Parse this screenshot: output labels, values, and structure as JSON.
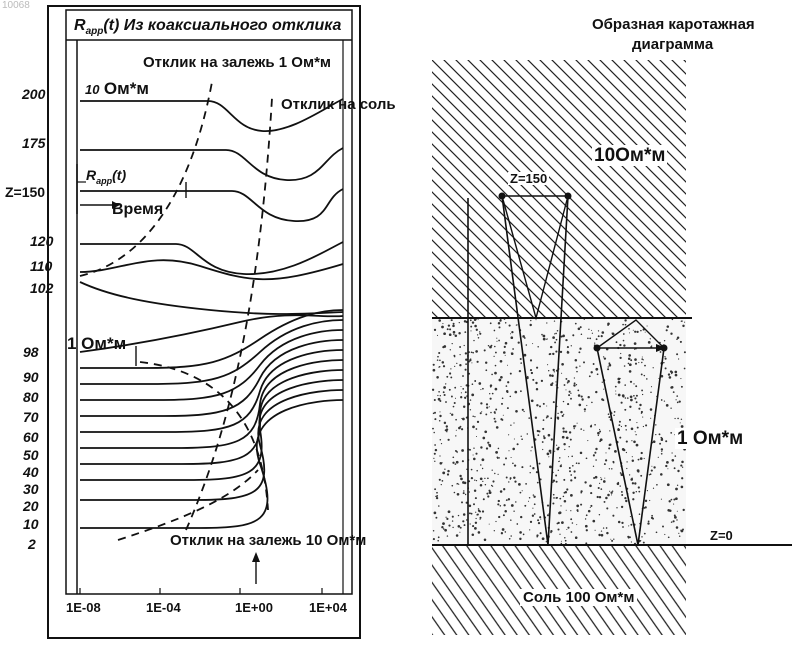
{
  "corner_label": "10068",
  "left_panel": {
    "title_prefix": "R",
    "title_sub": "app",
    "title_suffix": "(t) Из коаксиального отклика",
    "label_reservoir_1": "Отклик на залежь 1 Ом*м",
    "label_salt": "Отклик на соль",
    "label_reservoir_10": "Отклик на залежь 10 Ом*м",
    "label_10ohm_num": "10",
    "label_10ohm_unit": "Ом*м",
    "label_1ohm": "1 Ом*м",
    "label_rapp_prefix": "R",
    "label_rapp_sub": "app",
    "label_rapp_suffix": "(t)",
    "label_time": "Время"
  },
  "chart_data": {
    "type": "line",
    "title": "Rapp(t) Из коаксиального отклика",
    "xscale": "log",
    "x_ticks": [
      "1E-08",
      "1E-04",
      "1E+00",
      "1E+04"
    ],
    "y_ticks": [
      "200",
      "175",
      "Z=150",
      "120",
      "110",
      "102",
      "98",
      "90",
      "80",
      "70",
      "60",
      "50",
      "40",
      "30",
      "20",
      "10",
      "2"
    ],
    "series_count": 17,
    "annotations": [
      "Отклик на залежь 1 Ом*м",
      "Отклик на соль",
      "Отклик на залежь 10 Ом*м"
    ]
  },
  "right_panel": {
    "title_line1": "Образная каротажная",
    "title_line2": "диаграмма",
    "label_upper": "10Ом*м",
    "label_z150": "Z=150",
    "label_middle": "1 Ом*м",
    "label_z0": "Z=0",
    "label_salt": "Соль 100 Ом*м"
  }
}
